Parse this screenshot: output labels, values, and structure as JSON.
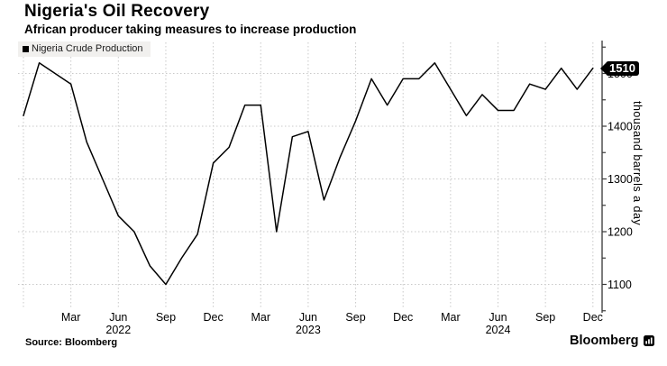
{
  "header": {
    "title": "Nigeria's Oil Recovery",
    "subtitle": "African producer taking measures to increase production"
  },
  "legend": {
    "label": "Nigeria Crude Production",
    "marker_color": "#000000"
  },
  "footer": {
    "source": "Source: Bloomberg",
    "brand": "Bloomberg"
  },
  "chart_data": {
    "type": "line",
    "title": "Nigeria's Oil Recovery",
    "subtitle": "African producer taking measures to increase production",
    "ylabel": "thousand barrels a day",
    "legend_position": "top-left",
    "grid": "dotted",
    "last_value_badge": "1510",
    "ylim": [
      1050,
      1550
    ],
    "yticks": [
      1100,
      1200,
      1300,
      1400,
      1500
    ],
    "minor_ytick_step": 50,
    "x": [
      "Dec 2021",
      "Jan 2022",
      "Feb 2022",
      "Mar 2022",
      "Apr 2022",
      "May 2022",
      "Jun 2022",
      "Jul 2022",
      "Aug 2022",
      "Sep 2022",
      "Oct 2022",
      "Nov 2022",
      "Dec 2022",
      "Jan 2023",
      "Feb 2023",
      "Mar 2023",
      "Apr 2023",
      "May 2023",
      "Jun 2023",
      "Jul 2023",
      "Aug 2023",
      "Sep 2023",
      "Oct 2023",
      "Nov 2023",
      "Dec 2023",
      "Jan 2024",
      "Feb 2024",
      "Mar 2024",
      "Apr 2024",
      "May 2024",
      "Jun 2024",
      "Jul 2024",
      "Aug 2024",
      "Sep 2024",
      "Oct 2024",
      "Nov 2024",
      "Dec 2024"
    ],
    "series": [
      {
        "name": "Nigeria Crude Production",
        "color": "#000000",
        "values": [
          1420,
          1520,
          1500,
          1480,
          1370,
          1300,
          1230,
          1200,
          1135,
          1100,
          1150,
          1195,
          1330,
          1360,
          1440,
          1440,
          1200,
          1380,
          1390,
          1260,
          1340,
          1410,
          1490,
          1440,
          1490,
          1490,
          1520,
          1470,
          1420,
          1460,
          1430,
          1430,
          1480,
          1470,
          1510,
          1470,
          1510
        ]
      }
    ],
    "xticks": [
      {
        "i": 0,
        "label": ""
      },
      {
        "i": 3,
        "label": "Mar"
      },
      {
        "i": 6,
        "label": "Jun",
        "year": "2022"
      },
      {
        "i": 9,
        "label": "Sep"
      },
      {
        "i": 12,
        "label": "Dec"
      },
      {
        "i": 15,
        "label": "Mar"
      },
      {
        "i": 18,
        "label": "Jun",
        "year": "2023"
      },
      {
        "i": 21,
        "label": "Sep"
      },
      {
        "i": 24,
        "label": "Dec"
      },
      {
        "i": 27,
        "label": "Mar"
      },
      {
        "i": 30,
        "label": "Jun",
        "year": "2024"
      },
      {
        "i": 33,
        "label": "Sep"
      },
      {
        "i": 36,
        "label": "Dec"
      }
    ]
  }
}
